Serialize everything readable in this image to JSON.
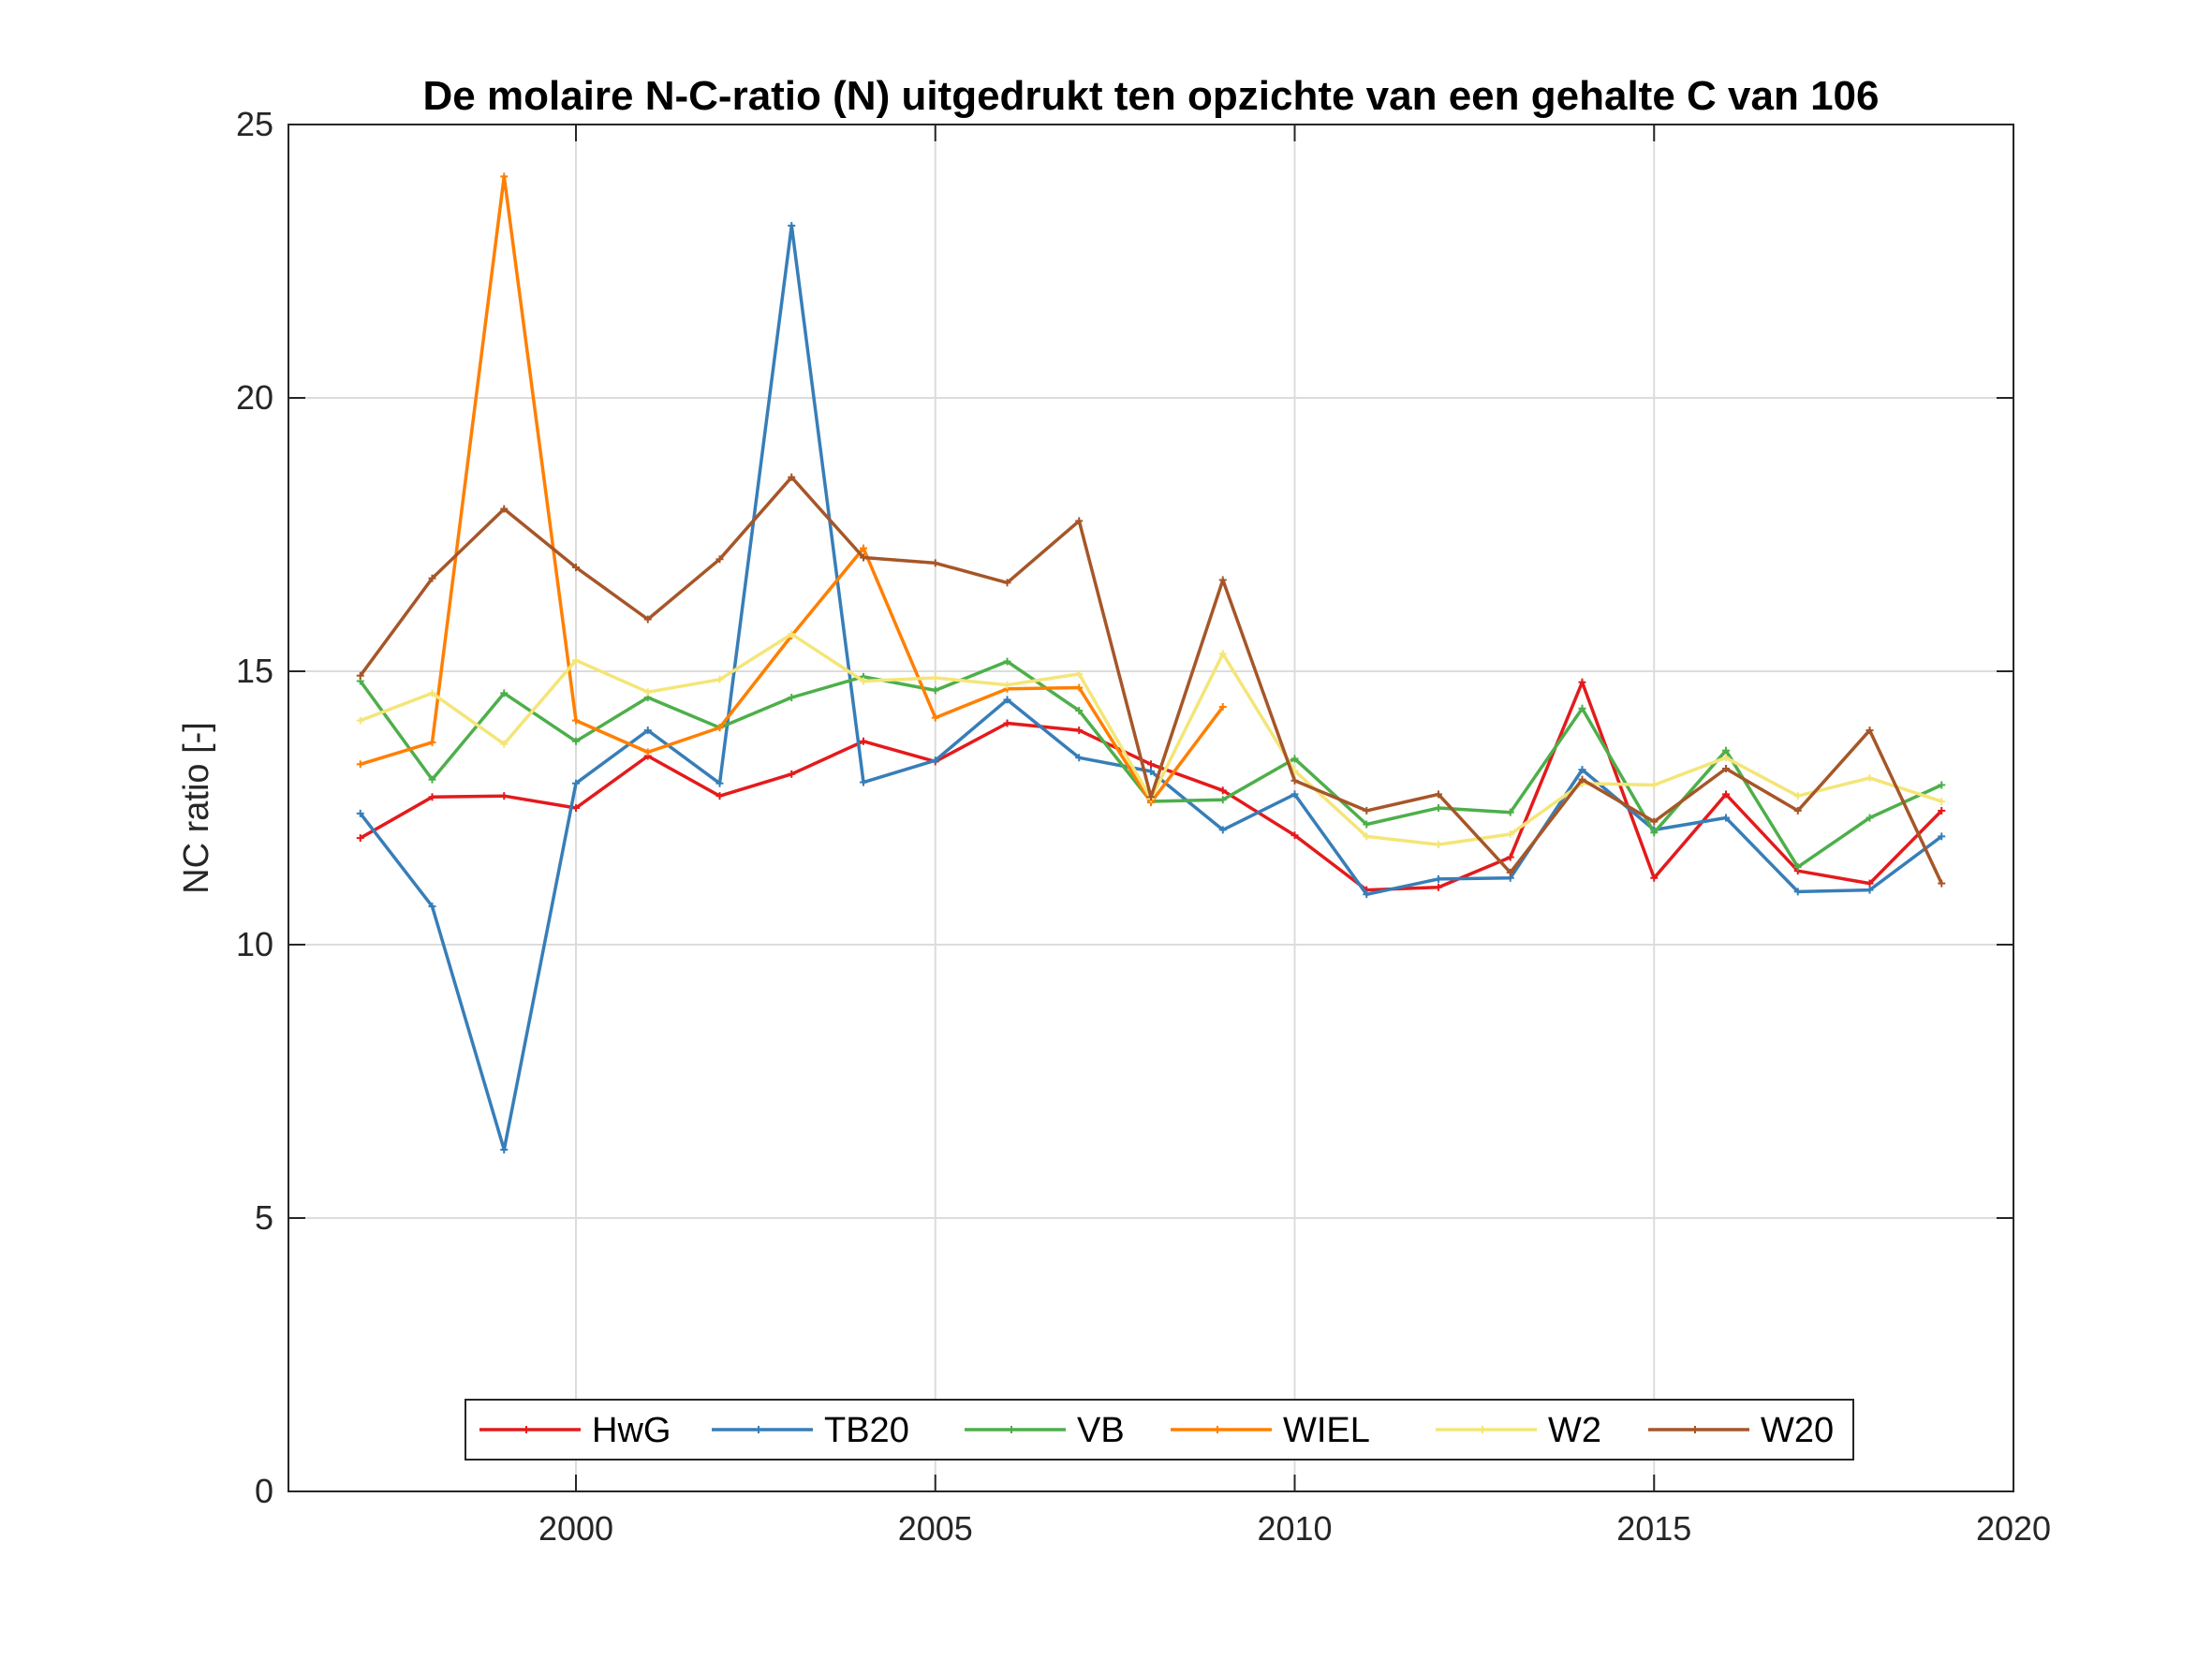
{
  "chart_data": {
    "type": "line",
    "title": "De molaire N-C-ratio (N) uitgedrukt ten opzichte van een gehalte C van 106",
    "xlabel": "",
    "ylabel": "NC ratio [-]",
    "xlim": [
      1996,
      2020
    ],
    "ylim": [
      0,
      25
    ],
    "xticks": [
      "2000",
      "2005",
      "2010",
      "2015",
      "2020"
    ],
    "yticks": [
      "0",
      "5",
      "10",
      "15",
      "20",
      "25"
    ],
    "grid": true,
    "legend_position": "bottom-center",
    "x": [
      1997,
      1998,
      1999,
      2000,
      2001,
      2002,
      2003,
      2004,
      2005,
      2006,
      2007,
      2008,
      2009,
      2010,
      2011,
      2012,
      2013,
      2014,
      2015,
      2016,
      2017,
      2018,
      2019
    ],
    "series": [
      {
        "name": "HwG",
        "color": "#e41a1c",
        "values": [
          11.95,
          12.7,
          12.72,
          12.5,
          13.45,
          12.72,
          13.12,
          13.72,
          13.35,
          14.05,
          13.92,
          13.3,
          12.82,
          12.0,
          11.0,
          11.05,
          11.6,
          14.8,
          11.22,
          12.75,
          11.35,
          11.12,
          12.45
        ]
      },
      {
        "name": "TB20",
        "color": "#377eb8",
        "values": [
          12.4,
          10.7,
          6.25,
          12.95,
          13.92,
          12.95,
          23.15,
          12.97,
          13.37,
          14.48,
          13.42,
          13.17,
          12.1,
          12.75,
          10.92,
          11.2,
          11.22,
          13.2,
          12.1,
          12.32,
          10.97,
          11.0,
          11.98
        ]
      },
      {
        "name": "VB",
        "color": "#4daf4a",
        "values": [
          14.82,
          13.02,
          14.6,
          13.72,
          14.52,
          13.97,
          14.52,
          14.9,
          14.65,
          15.18,
          14.28,
          12.62,
          12.65,
          13.4,
          12.2,
          12.5,
          12.42,
          14.32,
          12.05,
          13.55,
          11.42,
          12.32,
          12.92
        ]
      },
      {
        "name": "WIEL",
        "color": "#ff7f00",
        "values": [
          13.3,
          13.7,
          24.05,
          14.1,
          13.52,
          13.97,
          15.65,
          17.25,
          14.15,
          14.68,
          14.7,
          12.6,
          14.35,
          null,
          null,
          null,
          null,
          null,
          null,
          null,
          null,
          null,
          null
        ]
      },
      {
        "name": "W2",
        "color": "#f4e577",
        "values": [
          14.1,
          14.6,
          13.67,
          15.2,
          14.62,
          14.85,
          15.68,
          14.82,
          14.88,
          14.75,
          14.95,
          12.67,
          15.32,
          13.18,
          11.98,
          11.83,
          12.02,
          12.95,
          12.92,
          13.42,
          12.72,
          13.05,
          12.62
        ]
      },
      {
        "name": "W20",
        "color": "#a65628",
        "values": [
          14.92,
          16.7,
          17.97,
          16.9,
          15.95,
          17.05,
          18.55,
          17.08,
          16.98,
          16.62,
          17.75,
          12.7,
          16.67,
          13.0,
          12.45,
          12.75,
          11.32,
          13.02,
          12.25,
          13.22,
          12.45,
          13.92,
          11.12
        ]
      }
    ]
  }
}
